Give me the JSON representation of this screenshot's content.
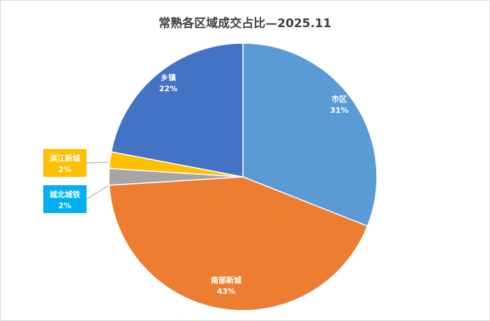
{
  "chart_data": {
    "type": "pie",
    "title": "常熟各区域成交占比—2025.11",
    "slices": [
      {
        "name": "市区",
        "value": 31,
        "label": "31%",
        "color": "#5b9bd5",
        "label_color": "#ffffff",
        "label_bg": null
      },
      {
        "name": "南部新城",
        "value": 43,
        "label": "43%",
        "color": "#ed7d31",
        "label_color": "#ffffff",
        "label_bg": null
      },
      {
        "name": "城北城铁",
        "value": 2,
        "label": "2%",
        "color": "#a5a5a5",
        "label_color": "#ffffff",
        "label_bg": "#00b0f0"
      },
      {
        "name": "滨江新城",
        "value": 2,
        "label": "2%",
        "color": "#ffc000",
        "label_color": "#ffffff",
        "label_bg": "#ffc000"
      },
      {
        "name": "乡镇",
        "value": 22,
        "label": "22%",
        "color": "#4472c4",
        "label_color": "#ffffff",
        "label_bg": null
      }
    ],
    "start_angle": "12 o'clock",
    "direction": "clockwise",
    "legend": "none"
  }
}
